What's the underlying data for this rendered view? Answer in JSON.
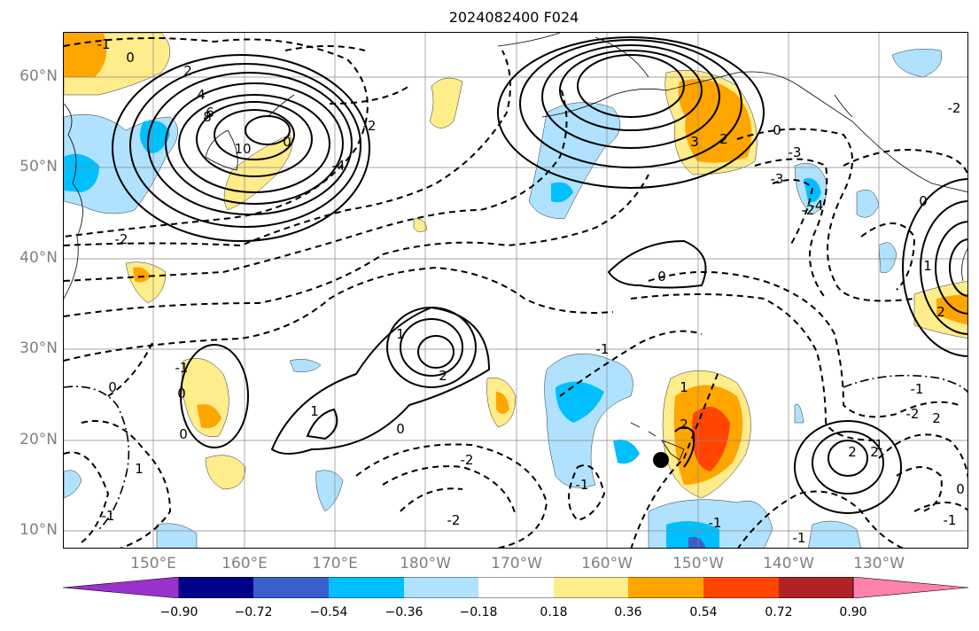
{
  "title": "2024082400 F024",
  "map": {
    "lat_labels": [
      "60°N",
      "50°N",
      "40°N",
      "30°N",
      "20°N",
      "10°N"
    ],
    "lon_labels": [
      "150°E",
      "160°E",
      "170°E",
      "180°W",
      "170°W",
      "160°W",
      "150°W",
      "140°W",
      "130°W"
    ],
    "contour_labels": [
      "-1",
      "0",
      "2",
      "4",
      "6",
      "8",
      "10",
      "0",
      "-2",
      "-4",
      "-2",
      "-3",
      "-2",
      "3",
      "2",
      "0",
      "-3",
      "-4",
      "-2",
      "0",
      "1",
      "1",
      "2",
      "0",
      "-1",
      "0",
      "-2",
      "-1",
      "-1",
      "2",
      "1",
      "0",
      "0",
      "1",
      "-1",
      "-2",
      "-1",
      "2",
      "-1",
      "2",
      "1",
      "2",
      "-1",
      "-1",
      "0",
      "1",
      "2",
      "0",
      "-2"
    ],
    "marker": "storm-position-dot"
  },
  "colorbar": {
    "tick_labels": [
      "−0.90",
      "−0.72",
      "−0.54",
      "−0.36",
      "−0.18",
      "0.18",
      "0.36",
      "0.54",
      "0.72",
      "0.90"
    ],
    "colors": [
      "#9932CC",
      "#00008B",
      "#3A5FCD",
      "#00BFFF",
      "#B0E2FF",
      "#FFFFFF",
      "#FFEC8B",
      "#FFA500",
      "#FF4500",
      "#B22222",
      "#FF82AB"
    ]
  }
}
